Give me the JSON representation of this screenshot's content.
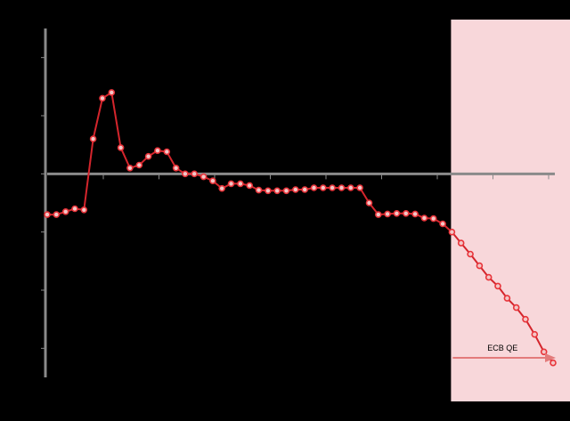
{
  "chart_data": {
    "type": "line",
    "title": "",
    "xlabel": "",
    "ylabel": "",
    "ylim": [
      -3.5,
      2.5
    ],
    "grid": false,
    "legend": "none",
    "x_tick_labels": [
      "",
      "",
      "",
      "",
      "",
      "",
      "",
      "",
      "",
      ""
    ],
    "series": [
      {
        "color": "#e8343a",
        "values": [
          -0.7,
          -0.7,
          -0.65,
          -0.6,
          -0.62,
          0.6,
          1.3,
          1.4,
          0.45,
          0.1,
          0.15,
          0.3,
          0.4,
          0.38,
          0.1,
          0.0,
          0.0,
          -0.05,
          -0.12,
          -0.25,
          -0.17,
          -0.17,
          -0.2,
          -0.28,
          -0.29,
          -0.29,
          -0.29,
          -0.27,
          -0.27,
          -0.24,
          -0.24,
          -0.24,
          -0.24,
          -0.24,
          -0.24,
          -0.5,
          -0.7,
          -0.69,
          -0.68,
          -0.68,
          -0.69,
          -0.76,
          -0.77,
          -0.86,
          -1.0,
          -1.19,
          -1.38,
          -1.58,
          -1.78,
          -1.93,
          -2.14,
          -2.3,
          -2.5,
          -2.76,
          -3.06,
          -3.25
        ]
      }
    ],
    "annotations": [
      {
        "label": "ECB QE",
        "type": "shaded-region",
        "color": "#f8d7da",
        "start_index": 44,
        "end_index": 55
      }
    ]
  }
}
